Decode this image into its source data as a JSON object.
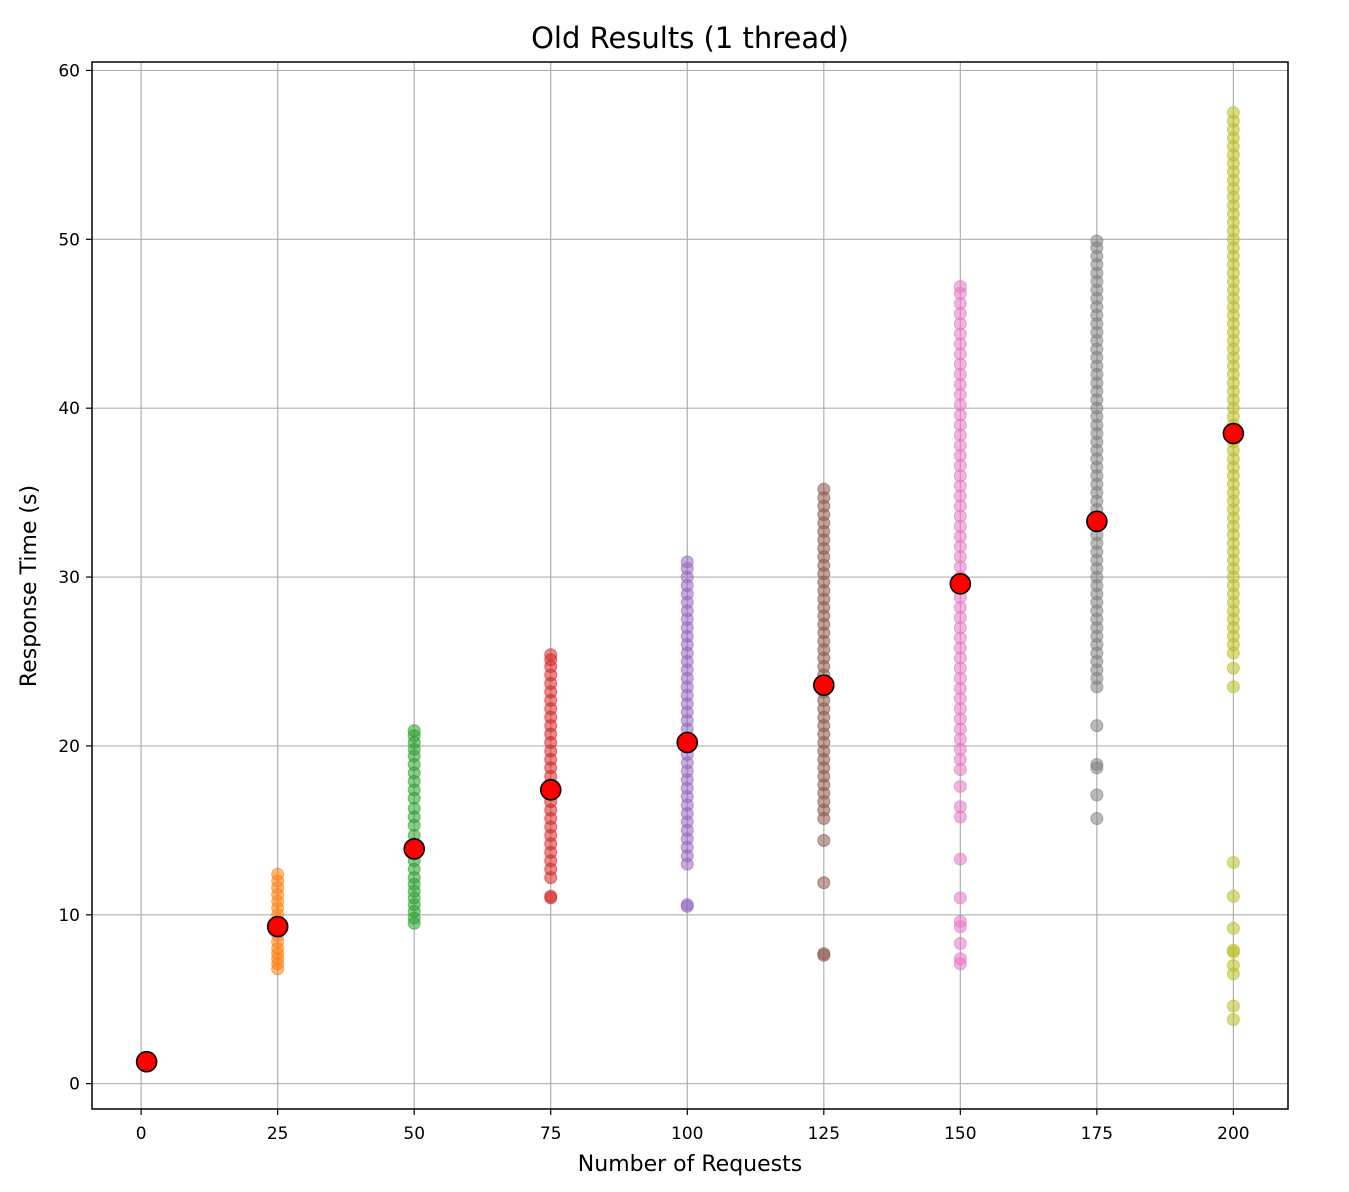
{
  "chart_data": {
    "type": "scatter",
    "title": "Old Results (1 thread)",
    "xlabel": "Number of Requests",
    "ylabel": "Response Time (s)",
    "xlim": [
      -9,
      210
    ],
    "ylim": [
      -1.5,
      60.5
    ],
    "xticks": [
      0,
      25,
      50,
      75,
      100,
      125,
      150,
      175,
      200
    ],
    "yticks": [
      0,
      10,
      20,
      30,
      40,
      50,
      60
    ],
    "grid": true,
    "series": [
      {
        "x": 1,
        "color": "#1f77b4",
        "values": [
          1.3
        ]
      },
      {
        "x": 25,
        "color": "#ff7f0e",
        "values": [
          6.8,
          7.1,
          7.4,
          7.7,
          8.0,
          8.4,
          8.8,
          9.2,
          9.6,
          10.0,
          10.4,
          10.8,
          11.2,
          11.6,
          12.0,
          12.4
        ]
      },
      {
        "x": 50,
        "color": "#2ca02c",
        "values": [
          9.5,
          9.8,
          10.2,
          10.6,
          11.0,
          11.4,
          11.8,
          12.2,
          12.7,
          13.2,
          13.7,
          14.2,
          14.7,
          15.3,
          15.8,
          16.3,
          16.9,
          17.4,
          17.9,
          18.4,
          18.9,
          19.4,
          19.8,
          20.2,
          20.6,
          20.9
        ]
      },
      {
        "x": 75,
        "color": "#d62728",
        "values": [
          11.0,
          11.1,
          12.2,
          12.7,
          13.2,
          13.7,
          14.2,
          14.7,
          15.2,
          15.7,
          16.2,
          16.7,
          17.2,
          17.7,
          18.2,
          18.7,
          19.2,
          19.7,
          20.2,
          20.7,
          21.2,
          21.7,
          22.2,
          22.7,
          23.2,
          23.7,
          24.2,
          24.7,
          25.1,
          25.4
        ]
      },
      {
        "x": 100,
        "color": "#9467bd",
        "values": [
          10.5,
          10.6,
          13.0,
          13.5,
          14.0,
          14.5,
          15.0,
          15.5,
          16.0,
          16.5,
          17.0,
          17.5,
          18.0,
          18.5,
          19.0,
          19.5,
          20.0,
          20.5,
          21.0,
          21.5,
          22.0,
          22.5,
          23.0,
          23.5,
          24.0,
          24.5,
          25.0,
          25.5,
          26.0,
          26.5,
          27.0,
          27.5,
          28.0,
          28.5,
          29.0,
          29.5,
          30.0,
          30.5,
          30.9
        ]
      },
      {
        "x": 125,
        "color": "#8c564b",
        "values": [
          7.6,
          7.7,
          11.9,
          14.4,
          15.7,
          16.2,
          16.7,
          17.2,
          17.7,
          18.2,
          18.7,
          19.2,
          19.7,
          20.2,
          20.7,
          21.2,
          21.7,
          22.2,
          22.7,
          23.2,
          23.7,
          24.2,
          24.7,
          25.2,
          25.7,
          26.2,
          26.7,
          27.2,
          27.7,
          28.2,
          28.7,
          29.2,
          29.7,
          30.2,
          30.7,
          31.2,
          31.7,
          32.2,
          32.7,
          33.2,
          33.7,
          34.2,
          34.7,
          35.2
        ]
      },
      {
        "x": 150,
        "color": "#e377c2",
        "values": [
          7.1,
          7.4,
          8.3,
          9.3,
          9.6,
          11.0,
          13.3,
          15.8,
          16.4,
          17.6,
          18.6,
          19.2,
          19.8,
          20.4,
          21.0,
          21.6,
          22.2,
          22.8,
          23.4,
          24.0,
          24.6,
          25.2,
          25.8,
          26.4,
          27.0,
          27.6,
          28.2,
          28.8,
          29.4,
          30.0,
          30.6,
          31.2,
          31.8,
          32.4,
          33.0,
          33.6,
          34.2,
          34.8,
          35.4,
          36.0,
          36.6,
          37.2,
          37.8,
          38.4,
          39.0,
          39.6,
          40.2,
          40.8,
          41.4,
          42.0,
          42.6,
          43.2,
          43.8,
          44.4,
          45.0,
          45.6,
          46.2,
          46.8,
          47.2
        ]
      },
      {
        "x": 175,
        "color": "#7f7f7f",
        "values": [
          15.7,
          17.1,
          18.7,
          18.9,
          21.2,
          23.5,
          24.0,
          24.5,
          25.0,
          25.5,
          26.0,
          26.5,
          27.0,
          27.5,
          28.0,
          28.5,
          29.0,
          29.5,
          30.0,
          30.5,
          31.0,
          31.5,
          32.0,
          32.5,
          33.0,
          33.5,
          34.0,
          34.5,
          35.0,
          35.5,
          36.0,
          36.5,
          37.0,
          37.5,
          38.0,
          38.5,
          39.0,
          39.5,
          40.0,
          40.5,
          41.0,
          41.5,
          42.0,
          42.5,
          43.0,
          43.5,
          44.0,
          44.5,
          45.0,
          45.5,
          46.0,
          46.5,
          47.0,
          47.5,
          48.0,
          48.5,
          49.0,
          49.5,
          49.9
        ]
      },
      {
        "x": 200,
        "color": "#bcbd22",
        "values": [
          3.8,
          4.6,
          6.5,
          7.0,
          7.8,
          7.9,
          9.2,
          11.1,
          13.1,
          23.5,
          24.6,
          25.5,
          26.0,
          26.5,
          27.0,
          27.5,
          28.0,
          28.5,
          29.0,
          29.5,
          30.0,
          30.5,
          31.0,
          31.5,
          32.0,
          32.5,
          33.0,
          33.5,
          34.0,
          34.5,
          35.0,
          35.5,
          36.0,
          36.5,
          37.0,
          37.5,
          38.0,
          38.5,
          39.0,
          39.5,
          40.0,
          40.5,
          41.0,
          41.5,
          42.0,
          42.5,
          43.0,
          43.5,
          44.0,
          44.5,
          45.0,
          45.5,
          46.0,
          46.5,
          47.0,
          47.5,
          48.0,
          48.5,
          49.0,
          49.5,
          50.0,
          50.5,
          51.0,
          51.5,
          52.0,
          52.5,
          53.0,
          53.5,
          54.0,
          54.5,
          55.0,
          55.5,
          56.0,
          56.5,
          57.0,
          57.5
        ]
      }
    ],
    "averages": {
      "color": "#ff0000",
      "x": [
        1,
        25,
        50,
        75,
        100,
        125,
        150,
        175,
        200
      ],
      "y": [
        1.3,
        9.3,
        13.9,
        17.4,
        20.2,
        23.6,
        29.6,
        33.3,
        38.5
      ]
    }
  }
}
